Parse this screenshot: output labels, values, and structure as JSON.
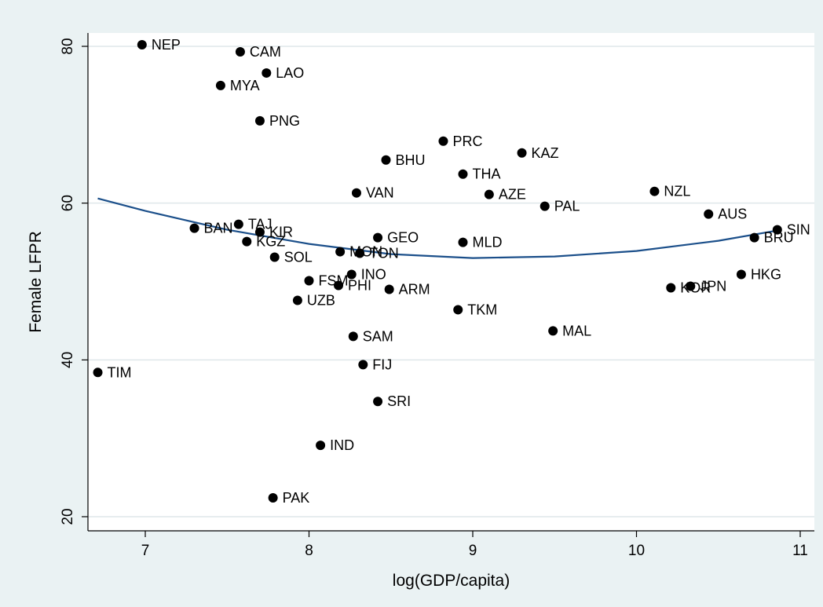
{
  "chart_data": {
    "type": "scatter",
    "title": "",
    "xlabel": "log(GDP/capita)",
    "ylabel": "Female LFPR",
    "xlim": [
      6.7,
      11.1
    ],
    "ylim": [
      19,
      82
    ],
    "xticks": [
      7,
      8,
      9,
      10,
      11
    ],
    "yticks": [
      20,
      40,
      60,
      80
    ],
    "grid": "horizontal",
    "legend": "none",
    "colors": {
      "background": "#eaf2f3",
      "plot_background": "#ffffff",
      "point": "#000000",
      "fit_line": "#1b4f8a",
      "grid": "#dfe7ea"
    },
    "points": [
      {
        "label": "NEP",
        "x": 6.98,
        "y": 80.2
      },
      {
        "label": "CAM",
        "x": 7.58,
        "y": 79.3
      },
      {
        "label": "LAO",
        "x": 7.74,
        "y": 76.6
      },
      {
        "label": "MYA",
        "x": 7.46,
        "y": 75.0
      },
      {
        "label": "PNG",
        "x": 7.7,
        "y": 70.5
      },
      {
        "label": "PRC",
        "x": 8.82,
        "y": 67.9
      },
      {
        "label": "KAZ",
        "x": 9.3,
        "y": 66.4
      },
      {
        "label": "BHU",
        "x": 8.47,
        "y": 65.5
      },
      {
        "label": "THA",
        "x": 8.94,
        "y": 63.7
      },
      {
        "label": "NZL",
        "x": 10.11,
        "y": 61.5
      },
      {
        "label": "VAN",
        "x": 8.29,
        "y": 61.3
      },
      {
        "label": "AZE",
        "x": 9.1,
        "y": 61.1
      },
      {
        "label": "PAL",
        "x": 9.44,
        "y": 59.6
      },
      {
        "label": "AUS",
        "x": 10.44,
        "y": 58.6
      },
      {
        "label": "TAJ",
        "x": 7.57,
        "y": 57.3
      },
      {
        "label": "BAN",
        "x": 7.3,
        "y": 56.8
      },
      {
        "label": "SIN",
        "x": 10.86,
        "y": 56.6
      },
      {
        "label": "KIR",
        "x": 7.7,
        "y": 56.3
      },
      {
        "label": "BRU",
        "x": 10.72,
        "y": 55.6
      },
      {
        "label": "GEO",
        "x": 8.42,
        "y": 55.6
      },
      {
        "label": "KGZ",
        "x": 7.62,
        "y": 55.1
      },
      {
        "label": "MLD",
        "x": 8.94,
        "y": 55.0
      },
      {
        "label": "MON",
        "x": 8.19,
        "y": 53.8
      },
      {
        "label": "TON",
        "x": 8.31,
        "y": 53.6
      },
      {
        "label": "SOL",
        "x": 7.79,
        "y": 53.1
      },
      {
        "label": "HKG",
        "x": 10.64,
        "y": 50.9
      },
      {
        "label": "INO",
        "x": 8.26,
        "y": 50.9
      },
      {
        "label": "FSM",
        "x": 8.0,
        "y": 50.1
      },
      {
        "label": "JPN",
        "x": 10.33,
        "y": 49.4
      },
      {
        "label": "PHI",
        "x": 8.18,
        "y": 49.5
      },
      {
        "label": "KOR",
        "x": 10.21,
        "y": 49.2
      },
      {
        "label": "ARM",
        "x": 8.49,
        "y": 49.0
      },
      {
        "label": "UZB",
        "x": 7.93,
        "y": 47.6
      },
      {
        "label": "TKM",
        "x": 8.91,
        "y": 46.4
      },
      {
        "label": "MAL",
        "x": 9.49,
        "y": 43.7
      },
      {
        "label": "SAM",
        "x": 8.27,
        "y": 43.0
      },
      {
        "label": "FIJ",
        "x": 8.33,
        "y": 39.4
      },
      {
        "label": "TIM",
        "x": 6.71,
        "y": 38.4
      },
      {
        "label": "SRI",
        "x": 8.42,
        "y": 34.7
      },
      {
        "label": "IND",
        "x": 8.07,
        "y": 29.1
      },
      {
        "label": "PAK",
        "x": 7.78,
        "y": 22.4
      }
    ],
    "fit_line": [
      {
        "x": 6.71,
        "y": 60.6
      },
      {
        "x": 7.0,
        "y": 59.0
      },
      {
        "x": 7.5,
        "y": 56.6
      },
      {
        "x": 8.0,
        "y": 54.8
      },
      {
        "x": 8.5,
        "y": 53.5
      },
      {
        "x": 9.0,
        "y": 53.0
      },
      {
        "x": 9.5,
        "y": 53.2
      },
      {
        "x": 10.0,
        "y": 53.9
      },
      {
        "x": 10.5,
        "y": 55.2
      },
      {
        "x": 10.86,
        "y": 56.5
      }
    ]
  }
}
